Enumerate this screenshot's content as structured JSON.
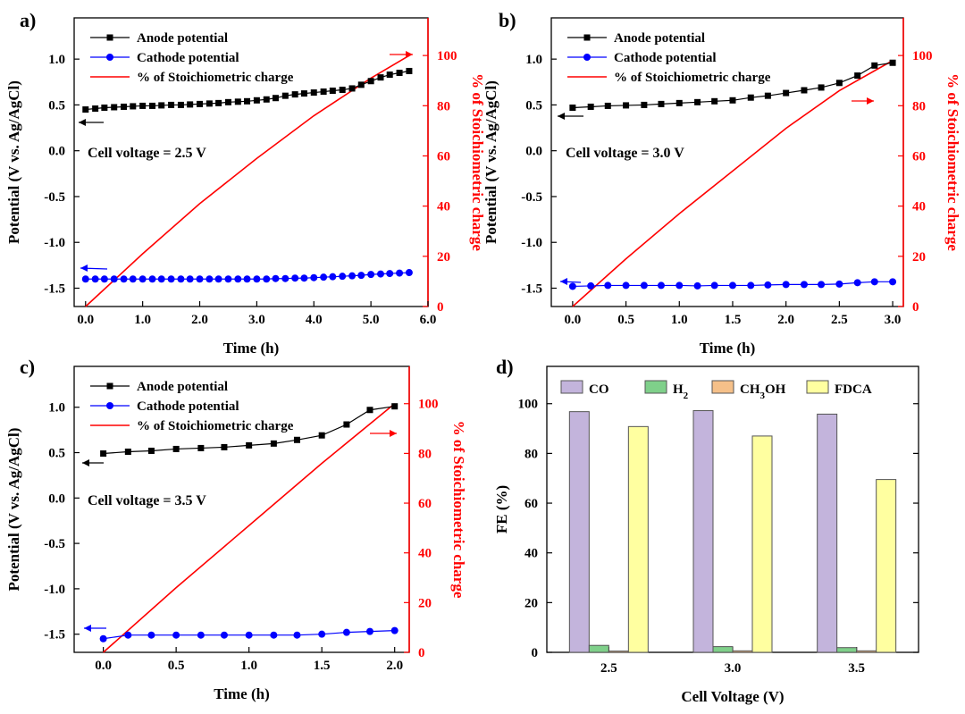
{
  "colors": {
    "anode": "#000000",
    "cathode": "#0000ff",
    "charge": "#ff0000",
    "co": "#c3b4dc",
    "h2": "#7fd08a",
    "ch3oh": "#f5c089",
    "fdca": "#ffffa0"
  },
  "chart_data": [
    {
      "panel": "a)",
      "type": "line",
      "note": "Cell voltage = 2.5 V",
      "xlabel": "Time (h)",
      "ylabel": "Potential (V vs. Ag/AgCl)",
      "y2label": "% of Stoichiometric charge",
      "xlim": [
        -0.2,
        6.0
      ],
      "ylim": [
        -1.7,
        1.45
      ],
      "y2lim": [
        0,
        115
      ],
      "xticks": [
        "0.0",
        "1.0",
        "2.0",
        "3.0",
        "4.0",
        "5.0",
        "6.0"
      ],
      "yticks": [
        "-1.5",
        "-1.0",
        "-0.5",
        "0.0",
        "0.5",
        "1.0"
      ],
      "y2ticks": [
        "0",
        "20",
        "40",
        "60",
        "80",
        "100"
      ],
      "legend": [
        "Anode potential",
        "Cathode potential",
        "% of Stoichiometric charge"
      ],
      "series": [
        {
          "name": "Anode potential",
          "x": [
            0.0,
            0.17,
            0.33,
            0.5,
            0.67,
            0.83,
            1.0,
            1.17,
            1.33,
            1.5,
            1.67,
            1.83,
            2.0,
            2.17,
            2.33,
            2.5,
            2.67,
            2.83,
            3.0,
            3.17,
            3.33,
            3.5,
            3.67,
            3.83,
            4.0,
            4.17,
            4.33,
            4.5,
            4.67,
            4.83,
            5.0,
            5.17,
            5.33,
            5.5,
            5.67
          ],
          "y": [
            0.45,
            0.46,
            0.47,
            0.475,
            0.48,
            0.485,
            0.49,
            0.49,
            0.495,
            0.5,
            0.5,
            0.505,
            0.51,
            0.515,
            0.52,
            0.53,
            0.535,
            0.54,
            0.55,
            0.56,
            0.575,
            0.6,
            0.615,
            0.625,
            0.635,
            0.645,
            0.655,
            0.665,
            0.68,
            0.72,
            0.76,
            0.8,
            0.83,
            0.85,
            0.87
          ]
        },
        {
          "name": "Cathode potential",
          "x": [
            0.0,
            0.17,
            0.33,
            0.5,
            0.67,
            0.83,
            1.0,
            1.17,
            1.33,
            1.5,
            1.67,
            1.83,
            2.0,
            2.17,
            2.33,
            2.5,
            2.67,
            2.83,
            3.0,
            3.17,
            3.33,
            3.5,
            3.67,
            3.83,
            4.0,
            4.17,
            4.33,
            4.5,
            4.67,
            4.83,
            5.0,
            5.17,
            5.33,
            5.5,
            5.67
          ],
          "y": [
            -1.4,
            -1.4,
            -1.4,
            -1.4,
            -1.4,
            -1.4,
            -1.4,
            -1.4,
            -1.4,
            -1.4,
            -1.4,
            -1.4,
            -1.4,
            -1.4,
            -1.4,
            -1.4,
            -1.4,
            -1.4,
            -1.4,
            -1.4,
            -1.395,
            -1.395,
            -1.39,
            -1.39,
            -1.385,
            -1.38,
            -1.375,
            -1.37,
            -1.365,
            -1.36,
            -1.35,
            -1.345,
            -1.34,
            -1.335,
            -1.33
          ]
        },
        {
          "name": "% of Stoichiometric charge",
          "x": [
            0.0,
            1.0,
            2.0,
            3.0,
            4.0,
            5.0,
            5.67
          ],
          "y2": [
            0,
            21,
            41,
            59,
            76,
            91,
            100
          ]
        }
      ]
    },
    {
      "panel": "b)",
      "type": "line",
      "note": "Cell voltage = 3.0 V",
      "xlabel": "Time (h)",
      "ylabel": "Potential (V vs. Ag/AgCl)",
      "y2label": "% of Stoichiometric charge",
      "xlim": [
        -0.2,
        3.1
      ],
      "ylim": [
        -1.7,
        1.45
      ],
      "y2lim": [
        0,
        115
      ],
      "xticks": [
        "0.0",
        "0.5",
        "1.0",
        "1.5",
        "2.0",
        "2.5",
        "3.0"
      ],
      "yticks": [
        "-1.5",
        "-1.0",
        "-0.5",
        "0.0",
        "0.5",
        "1.0"
      ],
      "y2ticks": [
        "0",
        "20",
        "40",
        "60",
        "80",
        "100"
      ],
      "legend": [
        "Anode potential",
        "Cathode potential",
        "% of Stoichiometric charge"
      ],
      "series": [
        {
          "name": "Anode potential",
          "x": [
            0.0,
            0.17,
            0.33,
            0.5,
            0.67,
            0.83,
            1.0,
            1.17,
            1.33,
            1.5,
            1.67,
            1.83,
            2.0,
            2.17,
            2.33,
            2.5,
            2.67,
            2.83,
            3.0
          ],
          "y": [
            0.47,
            0.48,
            0.49,
            0.495,
            0.5,
            0.51,
            0.52,
            0.53,
            0.54,
            0.55,
            0.58,
            0.6,
            0.63,
            0.66,
            0.69,
            0.74,
            0.82,
            0.93,
            0.96
          ]
        },
        {
          "name": "Cathode potential",
          "x": [
            0.0,
            0.17,
            0.33,
            0.5,
            0.67,
            0.83,
            1.0,
            1.17,
            1.33,
            1.5,
            1.67,
            1.83,
            2.0,
            2.17,
            2.33,
            2.5,
            2.67,
            2.83,
            3.0
          ],
          "y": [
            -1.48,
            -1.475,
            -1.47,
            -1.47,
            -1.47,
            -1.47,
            -1.47,
            -1.475,
            -1.47,
            -1.47,
            -1.47,
            -1.465,
            -1.46,
            -1.46,
            -1.46,
            -1.455,
            -1.44,
            -1.43,
            -1.43
          ]
        },
        {
          "name": "% of Stoichiometric charge",
          "x": [
            0.0,
            0.5,
            1.0,
            1.5,
            2.0,
            2.5,
            3.0
          ],
          "y2": [
            0,
            19,
            37,
            54,
            71,
            86,
            98
          ]
        }
      ]
    },
    {
      "panel": "c)",
      "type": "line",
      "note": "Cell voltage = 3.5 V",
      "xlabel": "Time (h)",
      "ylabel": "Potential (V vs. Ag/AgCl)",
      "y2label": "% of Stoichiometric charge",
      "xlim": [
        -0.2,
        2.1
      ],
      "ylim": [
        -1.7,
        1.45
      ],
      "y2lim": [
        0,
        115
      ],
      "xticks": [
        "0.0",
        "0.5",
        "1.0",
        "1.5",
        "2.0"
      ],
      "yticks": [
        "-1.5",
        "-1.0",
        "-0.5",
        "0.0",
        "0.5",
        "1.0"
      ],
      "y2ticks": [
        "0",
        "20",
        "40",
        "60",
        "80",
        "100"
      ],
      "legend": [
        "Anode potential",
        "Cathode potential",
        "% of Stoichiometric charge"
      ],
      "series": [
        {
          "name": "Anode potential",
          "x": [
            0.0,
            0.17,
            0.33,
            0.5,
            0.67,
            0.83,
            1.0,
            1.17,
            1.33,
            1.5,
            1.67,
            1.83,
            2.0
          ],
          "y": [
            0.49,
            0.51,
            0.52,
            0.54,
            0.55,
            0.56,
            0.58,
            0.6,
            0.64,
            0.69,
            0.81,
            0.97,
            1.01
          ]
        },
        {
          "name": "Cathode potential",
          "x": [
            0.0,
            0.17,
            0.33,
            0.5,
            0.67,
            0.83,
            1.0,
            1.17,
            1.33,
            1.5,
            1.67,
            1.83,
            2.0
          ],
          "y": [
            -1.55,
            -1.51,
            -1.51,
            -1.51,
            -1.51,
            -1.51,
            -1.51,
            -1.51,
            -1.51,
            -1.5,
            -1.48,
            -1.47,
            -1.46
          ]
        },
        {
          "name": "% of Stoichiometric charge",
          "x": [
            0.0,
            0.5,
            1.0,
            1.5,
            2.0
          ],
          "y2": [
            0,
            26,
            51,
            76,
            100
          ]
        }
      ]
    },
    {
      "panel": "d)",
      "type": "bar",
      "xlabel": "Cell Voltage (V)",
      "ylabel": "FE (%)",
      "ylim": [
        0,
        115
      ],
      "yticks": [
        "0",
        "20",
        "40",
        "60",
        "80",
        "100"
      ],
      "categories": [
        "2.5",
        "3.0",
        "3.5"
      ],
      "legend": [
        "CO",
        "H2",
        "CH3OH",
        "FDCA"
      ],
      "series": [
        {
          "name": "CO",
          "values": [
            96.8,
            97.2,
            95.8
          ]
        },
        {
          "name": "H2",
          "values": [
            2.8,
            2.3,
            1.9
          ]
        },
        {
          "name": "CH3OH",
          "values": [
            0.5,
            0.6,
            0.6
          ]
        },
        {
          "name": "FDCA",
          "values": [
            90.8,
            87.0,
            69.5
          ]
        }
      ]
    }
  ]
}
